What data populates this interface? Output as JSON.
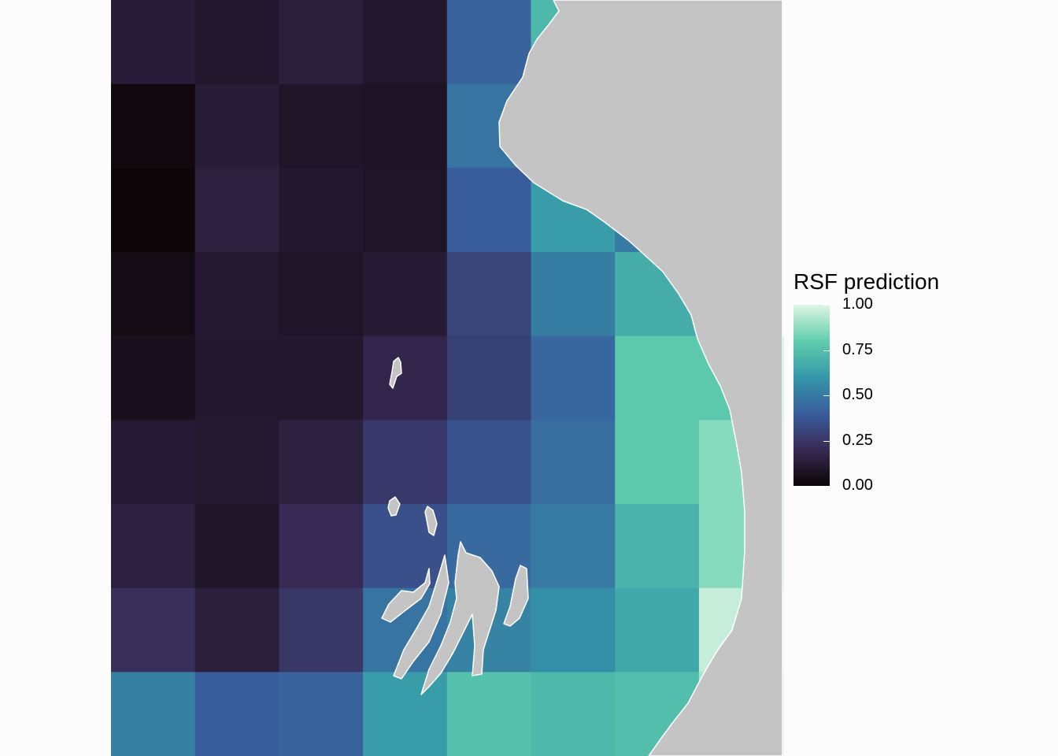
{
  "chart_data": {
    "type": "heatmap",
    "title": "",
    "xlabel": "",
    "ylabel": "",
    "grid": false,
    "legend": {
      "title": "RSF prediction",
      "position": "right",
      "breaks": [
        "1.00",
        "0.75",
        "0.50",
        "0.25",
        "0.00"
      ],
      "limits": [
        0,
        1
      ],
      "colors": [
        "#0b0405",
        "#382a54",
        "#395d9c",
        "#3497a9",
        "#60ceac",
        "#def5e5"
      ]
    },
    "n_cols": 8,
    "n_rows": 9,
    "values": [
      [
        0.13,
        0.1,
        0.14,
        0.1,
        0.42,
        0.72,
        null,
        null
      ],
      [
        0.02,
        0.13,
        0.09,
        0.08,
        0.48,
        null,
        null,
        null
      ],
      [
        0.01,
        0.15,
        0.1,
        0.09,
        0.4,
        0.62,
        0.5,
        null
      ],
      [
        0.04,
        0.11,
        0.09,
        0.12,
        0.3,
        0.51,
        0.68,
        null
      ],
      [
        0.06,
        0.1,
        0.1,
        0.18,
        0.29,
        0.43,
        0.78,
        0.78
      ],
      [
        0.12,
        0.11,
        0.15,
        0.26,
        0.36,
        0.46,
        0.78,
        0.86
      ],
      [
        0.15,
        0.09,
        0.2,
        0.35,
        0.44,
        0.5,
        0.7,
        0.86
      ],
      [
        0.22,
        0.14,
        0.25,
        0.48,
        0.53,
        0.57,
        0.66,
        0.96
      ],
      [
        0.52,
        0.4,
        0.42,
        0.62,
        0.75,
        0.72,
        0.74,
        0.92
      ]
    ]
  },
  "basemap": {
    "land_color": "#c4c4c4",
    "outline_color": "#ffffff"
  }
}
